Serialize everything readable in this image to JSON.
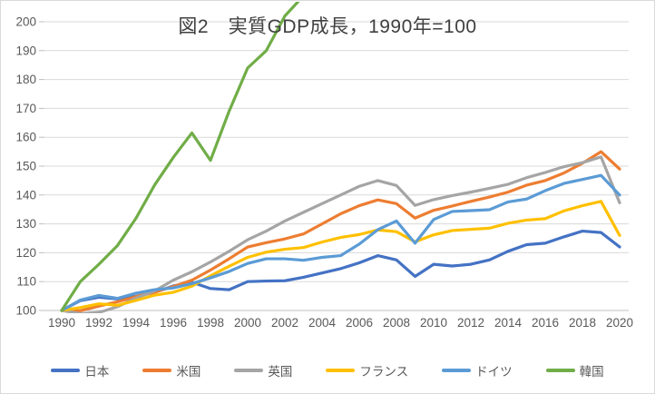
{
  "chart_data": {
    "type": "line",
    "title": "図2　実質GDP成長，1990年=100",
    "title_color": "#404040",
    "xlabel": "",
    "ylabel": "",
    "x": [
      1990,
      1991,
      1992,
      1993,
      1994,
      1995,
      1996,
      1997,
      1998,
      1999,
      2000,
      2001,
      2002,
      2003,
      2004,
      2005,
      2006,
      2007,
      2008,
      2009,
      2010,
      2011,
      2012,
      2013,
      2014,
      2015,
      2016,
      2017,
      2018,
      2019,
      2020
    ],
    "x_tick_labels": [
      "1990",
      "1992",
      "1994",
      "1996",
      "1998",
      "2000",
      "2002",
      "2004",
      "2006",
      "2008",
      "2010",
      "2012",
      "2014",
      "2016",
      "2018",
      "2020"
    ],
    "y_ticks": [
      100,
      110,
      120,
      130,
      140,
      150,
      160,
      170,
      180,
      190,
      200
    ],
    "ylim": [
      100,
      200
    ],
    "grid": true,
    "gridline_color": "#d9d9d9",
    "axis_line_color": "#bfbfbf",
    "axis_label_color": "#595959",
    "legend_position": "bottom",
    "series": [
      {
        "key": "japan",
        "name": "日本",
        "color": "#4472C4",
        "values": [
          100,
          103.4,
          104.6,
          104,
          104.9,
          106.3,
          108.5,
          109.8,
          107.6,
          107.2,
          110,
          110.2,
          110.3,
          111.5,
          113,
          114.5,
          116.5,
          119,
          117.5,
          111.8,
          116,
          115.4,
          116,
          117.5,
          120.5,
          122.8,
          123.3,
          125.5,
          127.5,
          127,
          122
        ]
      },
      {
        "key": "us",
        "name": "米国",
        "color": "#ED7D31",
        "values": [
          100,
          99.9,
          101.5,
          103,
          104.8,
          106.3,
          108.3,
          110.5,
          114,
          117.9,
          122,
          123.5,
          124.8,
          126.5,
          130,
          133.5,
          136.3,
          138.3,
          137,
          132,
          134.7,
          136.2,
          137.8,
          139.3,
          141,
          143.4,
          145,
          147.6,
          151,
          155,
          149
        ]
      },
      {
        "key": "uk",
        "name": "英国",
        "color": "#A5A5A5",
        "values": [
          100,
          98.9,
          99.3,
          101.3,
          104.3,
          106.8,
          110.5,
          113.4,
          116.8,
          120.5,
          124.5,
          127.5,
          131,
          134,
          137,
          140,
          143,
          145,
          143.3,
          136.4,
          138.4,
          139.8,
          141,
          142.3,
          143.7,
          146,
          147.8,
          149.8,
          151.2,
          153.2,
          137.3
        ]
      },
      {
        "key": "france",
        "name": "フランス",
        "color": "#FFC000",
        "values": [
          100,
          101,
          102.3,
          101.8,
          103.5,
          105.3,
          106.3,
          108.4,
          112,
          115.3,
          118.4,
          120.2,
          121.2,
          121.8,
          123.7,
          125.3,
          126.3,
          127.9,
          127.3,
          123.8,
          126.2,
          127.7,
          128.1,
          128.5,
          130.2,
          131.3,
          131.8,
          134.5,
          136.3,
          137.8,
          126
        ]
      },
      {
        "key": "germany",
        "name": "ドイツ",
        "color": "#5B9BD5",
        "values": [
          100,
          103.6,
          105.2,
          104.2,
          106,
          107.2,
          107.8,
          109.3,
          111.3,
          113.5,
          116.3,
          117.9,
          117.9,
          117.4,
          118.4,
          119,
          123,
          128,
          131,
          123.3,
          131.5,
          134.3,
          134.6,
          134.9,
          137.6,
          138.6,
          141.5,
          144,
          145.4,
          146.8,
          140
        ]
      },
      {
        "key": "korea",
        "name": "韓国",
        "color": "#70AD47",
        "values": [
          100,
          110,
          116,
          122.5,
          132,
          143.5,
          153,
          161.5,
          152,
          169,
          184,
          190,
          202,
          209,
          null,
          null,
          null,
          null,
          null,
          null,
          null,
          null,
          null,
          null,
          null,
          null,
          null,
          null,
          null,
          null,
          null
        ]
      }
    ]
  }
}
